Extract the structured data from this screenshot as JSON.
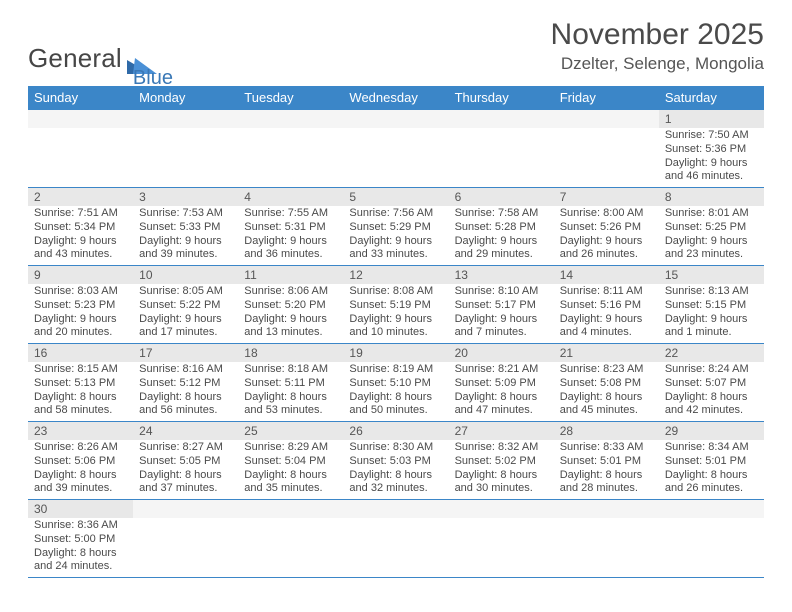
{
  "logo": {
    "text1": "General",
    "text2": "Blue"
  },
  "title": "November 2025",
  "location": "Dzelter, Selenge, Mongolia",
  "dayHeaders": [
    "Sunday",
    "Monday",
    "Tuesday",
    "Wednesday",
    "Thursday",
    "Friday",
    "Saturday"
  ],
  "colors": {
    "headerBg": "#3b86c8",
    "daynumBg": "#e8e8e8",
    "border": "#3b86c8"
  },
  "weeks": [
    [
      null,
      null,
      null,
      null,
      null,
      null,
      {
        "n": "1",
        "sr": "Sunrise: 7:50 AM",
        "ss": "Sunset: 5:36 PM",
        "dl": "Daylight: 9 hours and 46 minutes."
      }
    ],
    [
      {
        "n": "2",
        "sr": "Sunrise: 7:51 AM",
        "ss": "Sunset: 5:34 PM",
        "dl": "Daylight: 9 hours and 43 minutes."
      },
      {
        "n": "3",
        "sr": "Sunrise: 7:53 AM",
        "ss": "Sunset: 5:33 PM",
        "dl": "Daylight: 9 hours and 39 minutes."
      },
      {
        "n": "4",
        "sr": "Sunrise: 7:55 AM",
        "ss": "Sunset: 5:31 PM",
        "dl": "Daylight: 9 hours and 36 minutes."
      },
      {
        "n": "5",
        "sr": "Sunrise: 7:56 AM",
        "ss": "Sunset: 5:29 PM",
        "dl": "Daylight: 9 hours and 33 minutes."
      },
      {
        "n": "6",
        "sr": "Sunrise: 7:58 AM",
        "ss": "Sunset: 5:28 PM",
        "dl": "Daylight: 9 hours and 29 minutes."
      },
      {
        "n": "7",
        "sr": "Sunrise: 8:00 AM",
        "ss": "Sunset: 5:26 PM",
        "dl": "Daylight: 9 hours and 26 minutes."
      },
      {
        "n": "8",
        "sr": "Sunrise: 8:01 AM",
        "ss": "Sunset: 5:25 PM",
        "dl": "Daylight: 9 hours and 23 minutes."
      }
    ],
    [
      {
        "n": "9",
        "sr": "Sunrise: 8:03 AM",
        "ss": "Sunset: 5:23 PM",
        "dl": "Daylight: 9 hours and 20 minutes."
      },
      {
        "n": "10",
        "sr": "Sunrise: 8:05 AM",
        "ss": "Sunset: 5:22 PM",
        "dl": "Daylight: 9 hours and 17 minutes."
      },
      {
        "n": "11",
        "sr": "Sunrise: 8:06 AM",
        "ss": "Sunset: 5:20 PM",
        "dl": "Daylight: 9 hours and 13 minutes."
      },
      {
        "n": "12",
        "sr": "Sunrise: 8:08 AM",
        "ss": "Sunset: 5:19 PM",
        "dl": "Daylight: 9 hours and 10 minutes."
      },
      {
        "n": "13",
        "sr": "Sunrise: 8:10 AM",
        "ss": "Sunset: 5:17 PM",
        "dl": "Daylight: 9 hours and 7 minutes."
      },
      {
        "n": "14",
        "sr": "Sunrise: 8:11 AM",
        "ss": "Sunset: 5:16 PM",
        "dl": "Daylight: 9 hours and 4 minutes."
      },
      {
        "n": "15",
        "sr": "Sunrise: 8:13 AM",
        "ss": "Sunset: 5:15 PM",
        "dl": "Daylight: 9 hours and 1 minute."
      }
    ],
    [
      {
        "n": "16",
        "sr": "Sunrise: 8:15 AM",
        "ss": "Sunset: 5:13 PM",
        "dl": "Daylight: 8 hours and 58 minutes."
      },
      {
        "n": "17",
        "sr": "Sunrise: 8:16 AM",
        "ss": "Sunset: 5:12 PM",
        "dl": "Daylight: 8 hours and 56 minutes."
      },
      {
        "n": "18",
        "sr": "Sunrise: 8:18 AM",
        "ss": "Sunset: 5:11 PM",
        "dl": "Daylight: 8 hours and 53 minutes."
      },
      {
        "n": "19",
        "sr": "Sunrise: 8:19 AM",
        "ss": "Sunset: 5:10 PM",
        "dl": "Daylight: 8 hours and 50 minutes."
      },
      {
        "n": "20",
        "sr": "Sunrise: 8:21 AM",
        "ss": "Sunset: 5:09 PM",
        "dl": "Daylight: 8 hours and 47 minutes."
      },
      {
        "n": "21",
        "sr": "Sunrise: 8:23 AM",
        "ss": "Sunset: 5:08 PM",
        "dl": "Daylight: 8 hours and 45 minutes."
      },
      {
        "n": "22",
        "sr": "Sunrise: 8:24 AM",
        "ss": "Sunset: 5:07 PM",
        "dl": "Daylight: 8 hours and 42 minutes."
      }
    ],
    [
      {
        "n": "23",
        "sr": "Sunrise: 8:26 AM",
        "ss": "Sunset: 5:06 PM",
        "dl": "Daylight: 8 hours and 39 minutes."
      },
      {
        "n": "24",
        "sr": "Sunrise: 8:27 AM",
        "ss": "Sunset: 5:05 PM",
        "dl": "Daylight: 8 hours and 37 minutes."
      },
      {
        "n": "25",
        "sr": "Sunrise: 8:29 AM",
        "ss": "Sunset: 5:04 PM",
        "dl": "Daylight: 8 hours and 35 minutes."
      },
      {
        "n": "26",
        "sr": "Sunrise: 8:30 AM",
        "ss": "Sunset: 5:03 PM",
        "dl": "Daylight: 8 hours and 32 minutes."
      },
      {
        "n": "27",
        "sr": "Sunrise: 8:32 AM",
        "ss": "Sunset: 5:02 PM",
        "dl": "Daylight: 8 hours and 30 minutes."
      },
      {
        "n": "28",
        "sr": "Sunrise: 8:33 AM",
        "ss": "Sunset: 5:01 PM",
        "dl": "Daylight: 8 hours and 28 minutes."
      },
      {
        "n": "29",
        "sr": "Sunrise: 8:34 AM",
        "ss": "Sunset: 5:01 PM",
        "dl": "Daylight: 8 hours and 26 minutes."
      }
    ],
    [
      {
        "n": "30",
        "sr": "Sunrise: 8:36 AM",
        "ss": "Sunset: 5:00 PM",
        "dl": "Daylight: 8 hours and 24 minutes."
      },
      null,
      null,
      null,
      null,
      null,
      null
    ]
  ]
}
